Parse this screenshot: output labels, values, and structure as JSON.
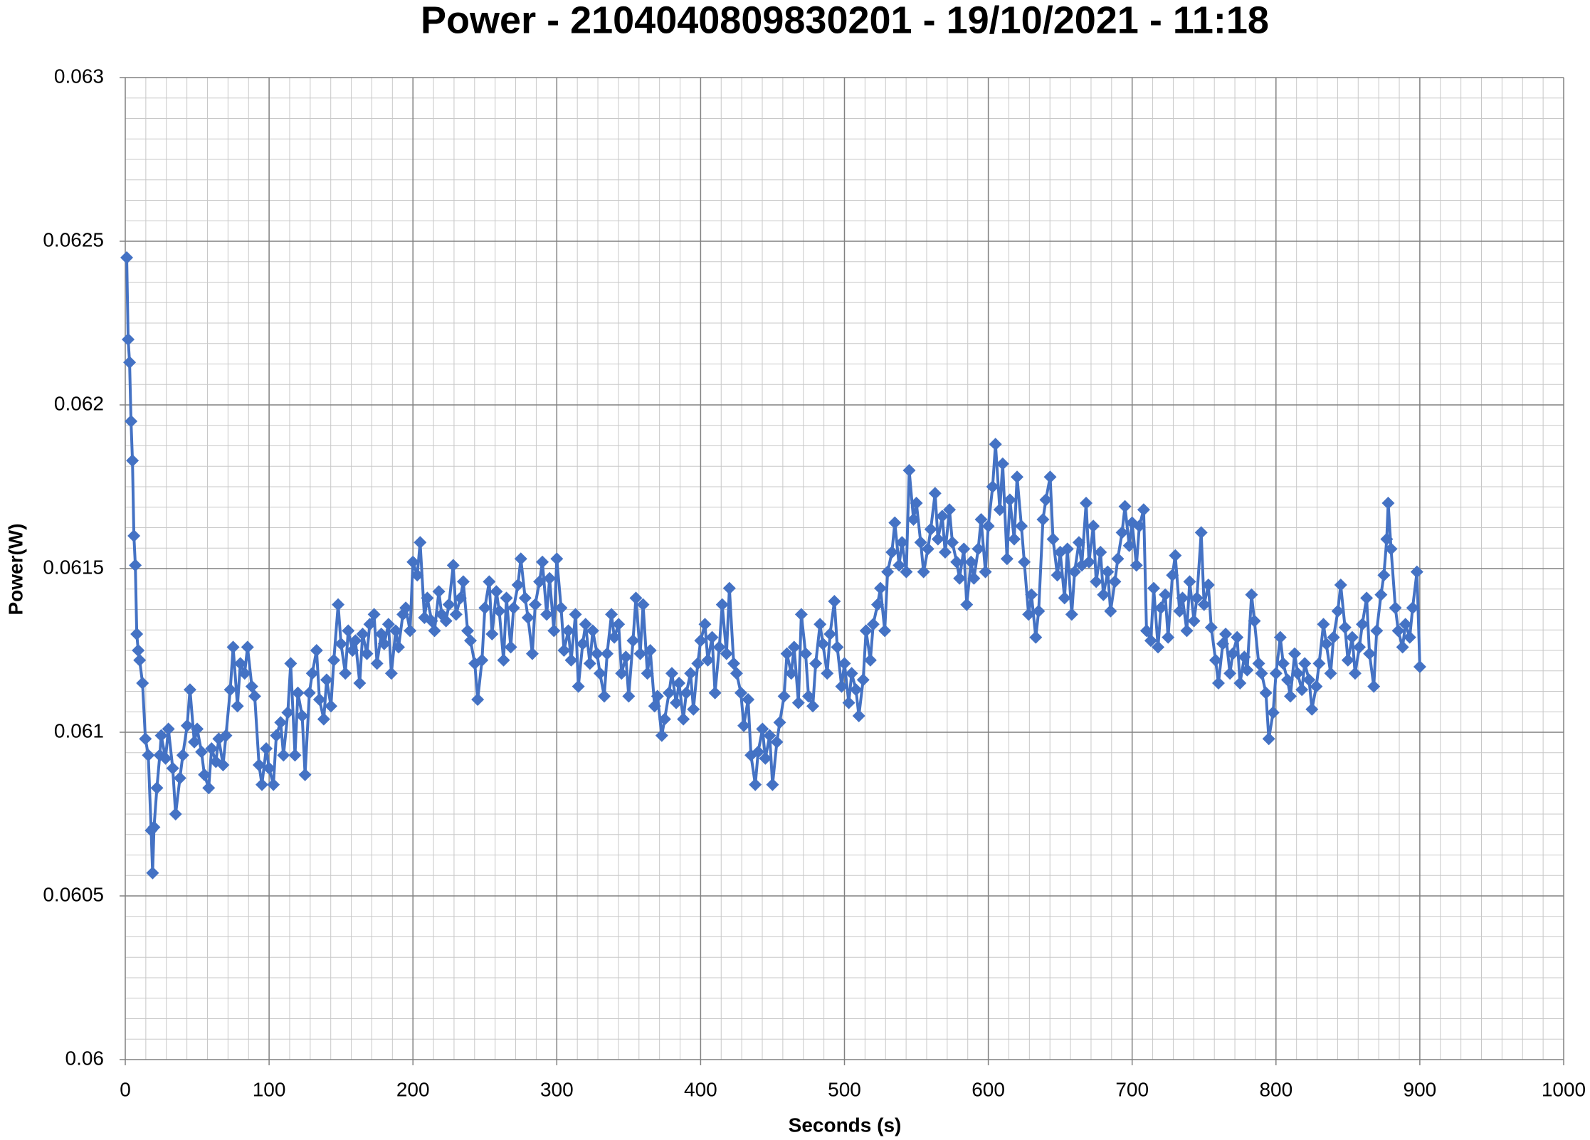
{
  "chart_data": {
    "type": "line",
    "title": "Power - 2104040809830201 - 19/10/2021 - 11:18",
    "x_label": "Seconds (s)",
    "y_label": "Power(W)",
    "color": "#4472c4",
    "markers": "diamond",
    "grid": true,
    "minor_grid": true,
    "xlim": [
      0,
      1000
    ],
    "xticks": [
      0,
      100,
      200,
      300,
      400,
      500,
      600,
      700,
      800,
      900,
      1000
    ],
    "ylim": [
      0.06,
      0.063
    ],
    "yticks": [
      0.06,
      0.0605,
      0.061,
      0.0615,
      0.062,
      0.0625,
      0.063
    ],
    "x": [
      1,
      2,
      3,
      4,
      5,
      6,
      7,
      8,
      9,
      10,
      12,
      14,
      16,
      18,
      19,
      20,
      22,
      24,
      25,
      28,
      30,
      33,
      35,
      38,
      40,
      43,
      45,
      48,
      50,
      53,
      55,
      58,
      60,
      63,
      65,
      68,
      70,
      73,
      75,
      78,
      80,
      83,
      85,
      88,
      90,
      93,
      95,
      98,
      100,
      103,
      105,
      108,
      110,
      113,
      115,
      118,
      120,
      123,
      125,
      128,
      130,
      133,
      135,
      138,
      140,
      143,
      145,
      148,
      150,
      153,
      155,
      158,
      160,
      163,
      165,
      168,
      170,
      173,
      175,
      178,
      180,
      183,
      185,
      188,
      190,
      193,
      195,
      198,
      200,
      203,
      205,
      208,
      210,
      213,
      215,
      218,
      220,
      223,
      225,
      228,
      230,
      233,
      235,
      238,
      240,
      243,
      245,
      248,
      250,
      253,
      255,
      258,
      260,
      263,
      265,
      268,
      270,
      273,
      275,
      278,
      280,
      283,
      285,
      288,
      290,
      293,
      295,
      298,
      300,
      303,
      305,
      308,
      310,
      313,
      315,
      318,
      320,
      323,
      325,
      328,
      330,
      333,
      335,
      338,
      340,
      343,
      345,
      348,
      350,
      353,
      355,
      358,
      360,
      363,
      365,
      368,
      370,
      373,
      375,
      378,
      380,
      383,
      385,
      388,
      390,
      393,
      395,
      398,
      400,
      403,
      405,
      408,
      410,
      413,
      415,
      418,
      420,
      423,
      425,
      428,
      430,
      433,
      435,
      438,
      440,
      443,
      445,
      448,
      450,
      453,
      455,
      458,
      460,
      463,
      465,
      468,
      470,
      473,
      475,
      478,
      480,
      483,
      485,
      488,
      490,
      493,
      495,
      498,
      500,
      503,
      505,
      508,
      510,
      513,
      515,
      518,
      520,
      523,
      525,
      528,
      530,
      533,
      535,
      538,
      540,
      543,
      545,
      548,
      550,
      553,
      555,
      558,
      560,
      563,
      565,
      568,
      570,
      573,
      575,
      578,
      580,
      583,
      585,
      588,
      590,
      593,
      595,
      598,
      600,
      603,
      605,
      608,
      610,
      613,
      615,
      618,
      620,
      623,
      625,
      628,
      630,
      633,
      635,
      638,
      640,
      643,
      645,
      648,
      650,
      653,
      655,
      658,
      660,
      663,
      665,
      668,
      670,
      673,
      675,
      678,
      680,
      683,
      685,
      688,
      690,
      693,
      695,
      698,
      700,
      703,
      705,
      708,
      710,
      713,
      715,
      718,
      720,
      723,
      725,
      728,
      730,
      733,
      735,
      738,
      740,
      743,
      745,
      748,
      750,
      753,
      755,
      758,
      760,
      763,
      765,
      768,
      770,
      773,
      775,
      778,
      780,
      783,
      785,
      788,
      790,
      793,
      795,
      798,
      800,
      803,
      805,
      808,
      810,
      813,
      815,
      818,
      820,
      823,
      825,
      828,
      830,
      833,
      835,
      838,
      840,
      843,
      845,
      848,
      850,
      853,
      855,
      858,
      860,
      863,
      865,
      868,
      870,
      873,
      875,
      877,
      878,
      880,
      883,
      885,
      888,
      890,
      893,
      895,
      898,
      900
    ],
    "values": [
      0.06245,
      0.0622,
      0.06213,
      0.06195,
      0.06183,
      0.0616,
      0.06151,
      0.0613,
      0.06125,
      0.06122,
      0.06115,
      0.06098,
      0.06093,
      0.0607,
      0.06057,
      0.06071,
      0.06083,
      0.06093,
      0.06099,
      0.06092,
      0.06101,
      0.06089,
      0.06075,
      0.06086,
      0.06093,
      0.06102,
      0.06113,
      0.06097,
      0.06101,
      0.06094,
      0.06087,
      0.06083,
      0.06095,
      0.06091,
      0.06098,
      0.0609,
      0.06099,
      0.06113,
      0.06126,
      0.06108,
      0.06121,
      0.06118,
      0.06126,
      0.06114,
      0.06111,
      0.0609,
      0.06084,
      0.06095,
      0.06089,
      0.06084,
      0.06099,
      0.06103,
      0.06093,
      0.06106,
      0.06121,
      0.06093,
      0.06112,
      0.06105,
      0.06087,
      0.06112,
      0.06118,
      0.06125,
      0.0611,
      0.06104,
      0.06116,
      0.06108,
      0.06122,
      0.06139,
      0.06127,
      0.06118,
      0.06131,
      0.06125,
      0.06128,
      0.06115,
      0.0613,
      0.06124,
      0.06133,
      0.06136,
      0.06121,
      0.0613,
      0.06127,
      0.06133,
      0.06118,
      0.06131,
      0.06126,
      0.06136,
      0.06138,
      0.06131,
      0.06152,
      0.06148,
      0.06158,
      0.06135,
      0.06141,
      0.06134,
      0.06131,
      0.06143,
      0.06136,
      0.06134,
      0.06139,
      0.06151,
      0.06136,
      0.06141,
      0.06146,
      0.06131,
      0.06128,
      0.06121,
      0.0611,
      0.06122,
      0.06138,
      0.06146,
      0.0613,
      0.06143,
      0.06137,
      0.06122,
      0.06141,
      0.06126,
      0.06138,
      0.06145,
      0.06153,
      0.06141,
      0.06135,
      0.06124,
      0.06139,
      0.06146,
      0.06152,
      0.06136,
      0.06147,
      0.06131,
      0.06153,
      0.06138,
      0.06125,
      0.06131,
      0.06122,
      0.06136,
      0.06114,
      0.06127,
      0.06133,
      0.06121,
      0.06131,
      0.06124,
      0.06118,
      0.06111,
      0.06124,
      0.06136,
      0.06129,
      0.06133,
      0.06118,
      0.06123,
      0.06111,
      0.06128,
      0.06141,
      0.06124,
      0.06139,
      0.06118,
      0.06125,
      0.06108,
      0.06111,
      0.06099,
      0.06104,
      0.06112,
      0.06118,
      0.06109,
      0.06115,
      0.06104,
      0.06112,
      0.06118,
      0.06107,
      0.06121,
      0.06128,
      0.06133,
      0.06122,
      0.06129,
      0.06112,
      0.06126,
      0.06139,
      0.06124,
      0.06144,
      0.06121,
      0.06118,
      0.06112,
      0.06102,
      0.0611,
      0.06093,
      0.06084,
      0.06094,
      0.06101,
      0.06092,
      0.06099,
      0.06084,
      0.06097,
      0.06103,
      0.06111,
      0.06124,
      0.06118,
      0.06126,
      0.06109,
      0.06136,
      0.06124,
      0.06111,
      0.06108,
      0.06121,
      0.06133,
      0.06127,
      0.06118,
      0.0613,
      0.0614,
      0.06126,
      0.06114,
      0.06121,
      0.06109,
      0.06118,
      0.06113,
      0.06105,
      0.06116,
      0.06131,
      0.06122,
      0.06133,
      0.06139,
      0.06144,
      0.06131,
      0.06149,
      0.06155,
      0.06164,
      0.06151,
      0.06158,
      0.06149,
      0.0618,
      0.06165,
      0.0617,
      0.06158,
      0.06149,
      0.06156,
      0.06162,
      0.06173,
      0.06159,
      0.06166,
      0.06155,
      0.06168,
      0.06158,
      0.06152,
      0.06147,
      0.06156,
      0.06139,
      0.06152,
      0.06147,
      0.06156,
      0.06165,
      0.06149,
      0.06163,
      0.06175,
      0.06188,
      0.06168,
      0.06182,
      0.06153,
      0.06171,
      0.06159,
      0.06178,
      0.06163,
      0.06152,
      0.06136,
      0.06142,
      0.06129,
      0.06137,
      0.06165,
      0.06171,
      0.06178,
      0.06159,
      0.06148,
      0.06155,
      0.06141,
      0.06156,
      0.06136,
      0.06149,
      0.06158,
      0.06151,
      0.0617,
      0.06152,
      0.06163,
      0.06146,
      0.06155,
      0.06142,
      0.06149,
      0.06137,
      0.06146,
      0.06153,
      0.06161,
      0.06169,
      0.06157,
      0.06164,
      0.06151,
      0.06163,
      0.06168,
      0.06131,
      0.06128,
      0.06144,
      0.06126,
      0.06138,
      0.06142,
      0.06129,
      0.06148,
      0.06154,
      0.06137,
      0.06141,
      0.06131,
      0.06146,
      0.06134,
      0.06141,
      0.06161,
      0.06139,
      0.06145,
      0.06132,
      0.06122,
      0.06115,
      0.06127,
      0.0613,
      0.06118,
      0.06124,
      0.06129,
      0.06115,
      0.06123,
      0.06119,
      0.06142,
      0.06134,
      0.06121,
      0.06118,
      0.06112,
      0.06098,
      0.06106,
      0.06118,
      0.06129,
      0.06121,
      0.06116,
      0.06111,
      0.06124,
      0.06118,
      0.06113,
      0.06121,
      0.06116,
      0.06107,
      0.06114,
      0.06121,
      0.06133,
      0.06127,
      0.06118,
      0.06129,
      0.06137,
      0.06145,
      0.06132,
      0.06122,
      0.06129,
      0.06118,
      0.06126,
      0.06133,
      0.06141,
      0.06124,
      0.06114,
      0.06131,
      0.06142,
      0.06148,
      0.06159,
      0.0617,
      0.06156,
      0.06138,
      0.06131,
      0.06126,
      0.06133,
      0.06129,
      0.06138,
      0.06149,
      0.0612
    ]
  }
}
